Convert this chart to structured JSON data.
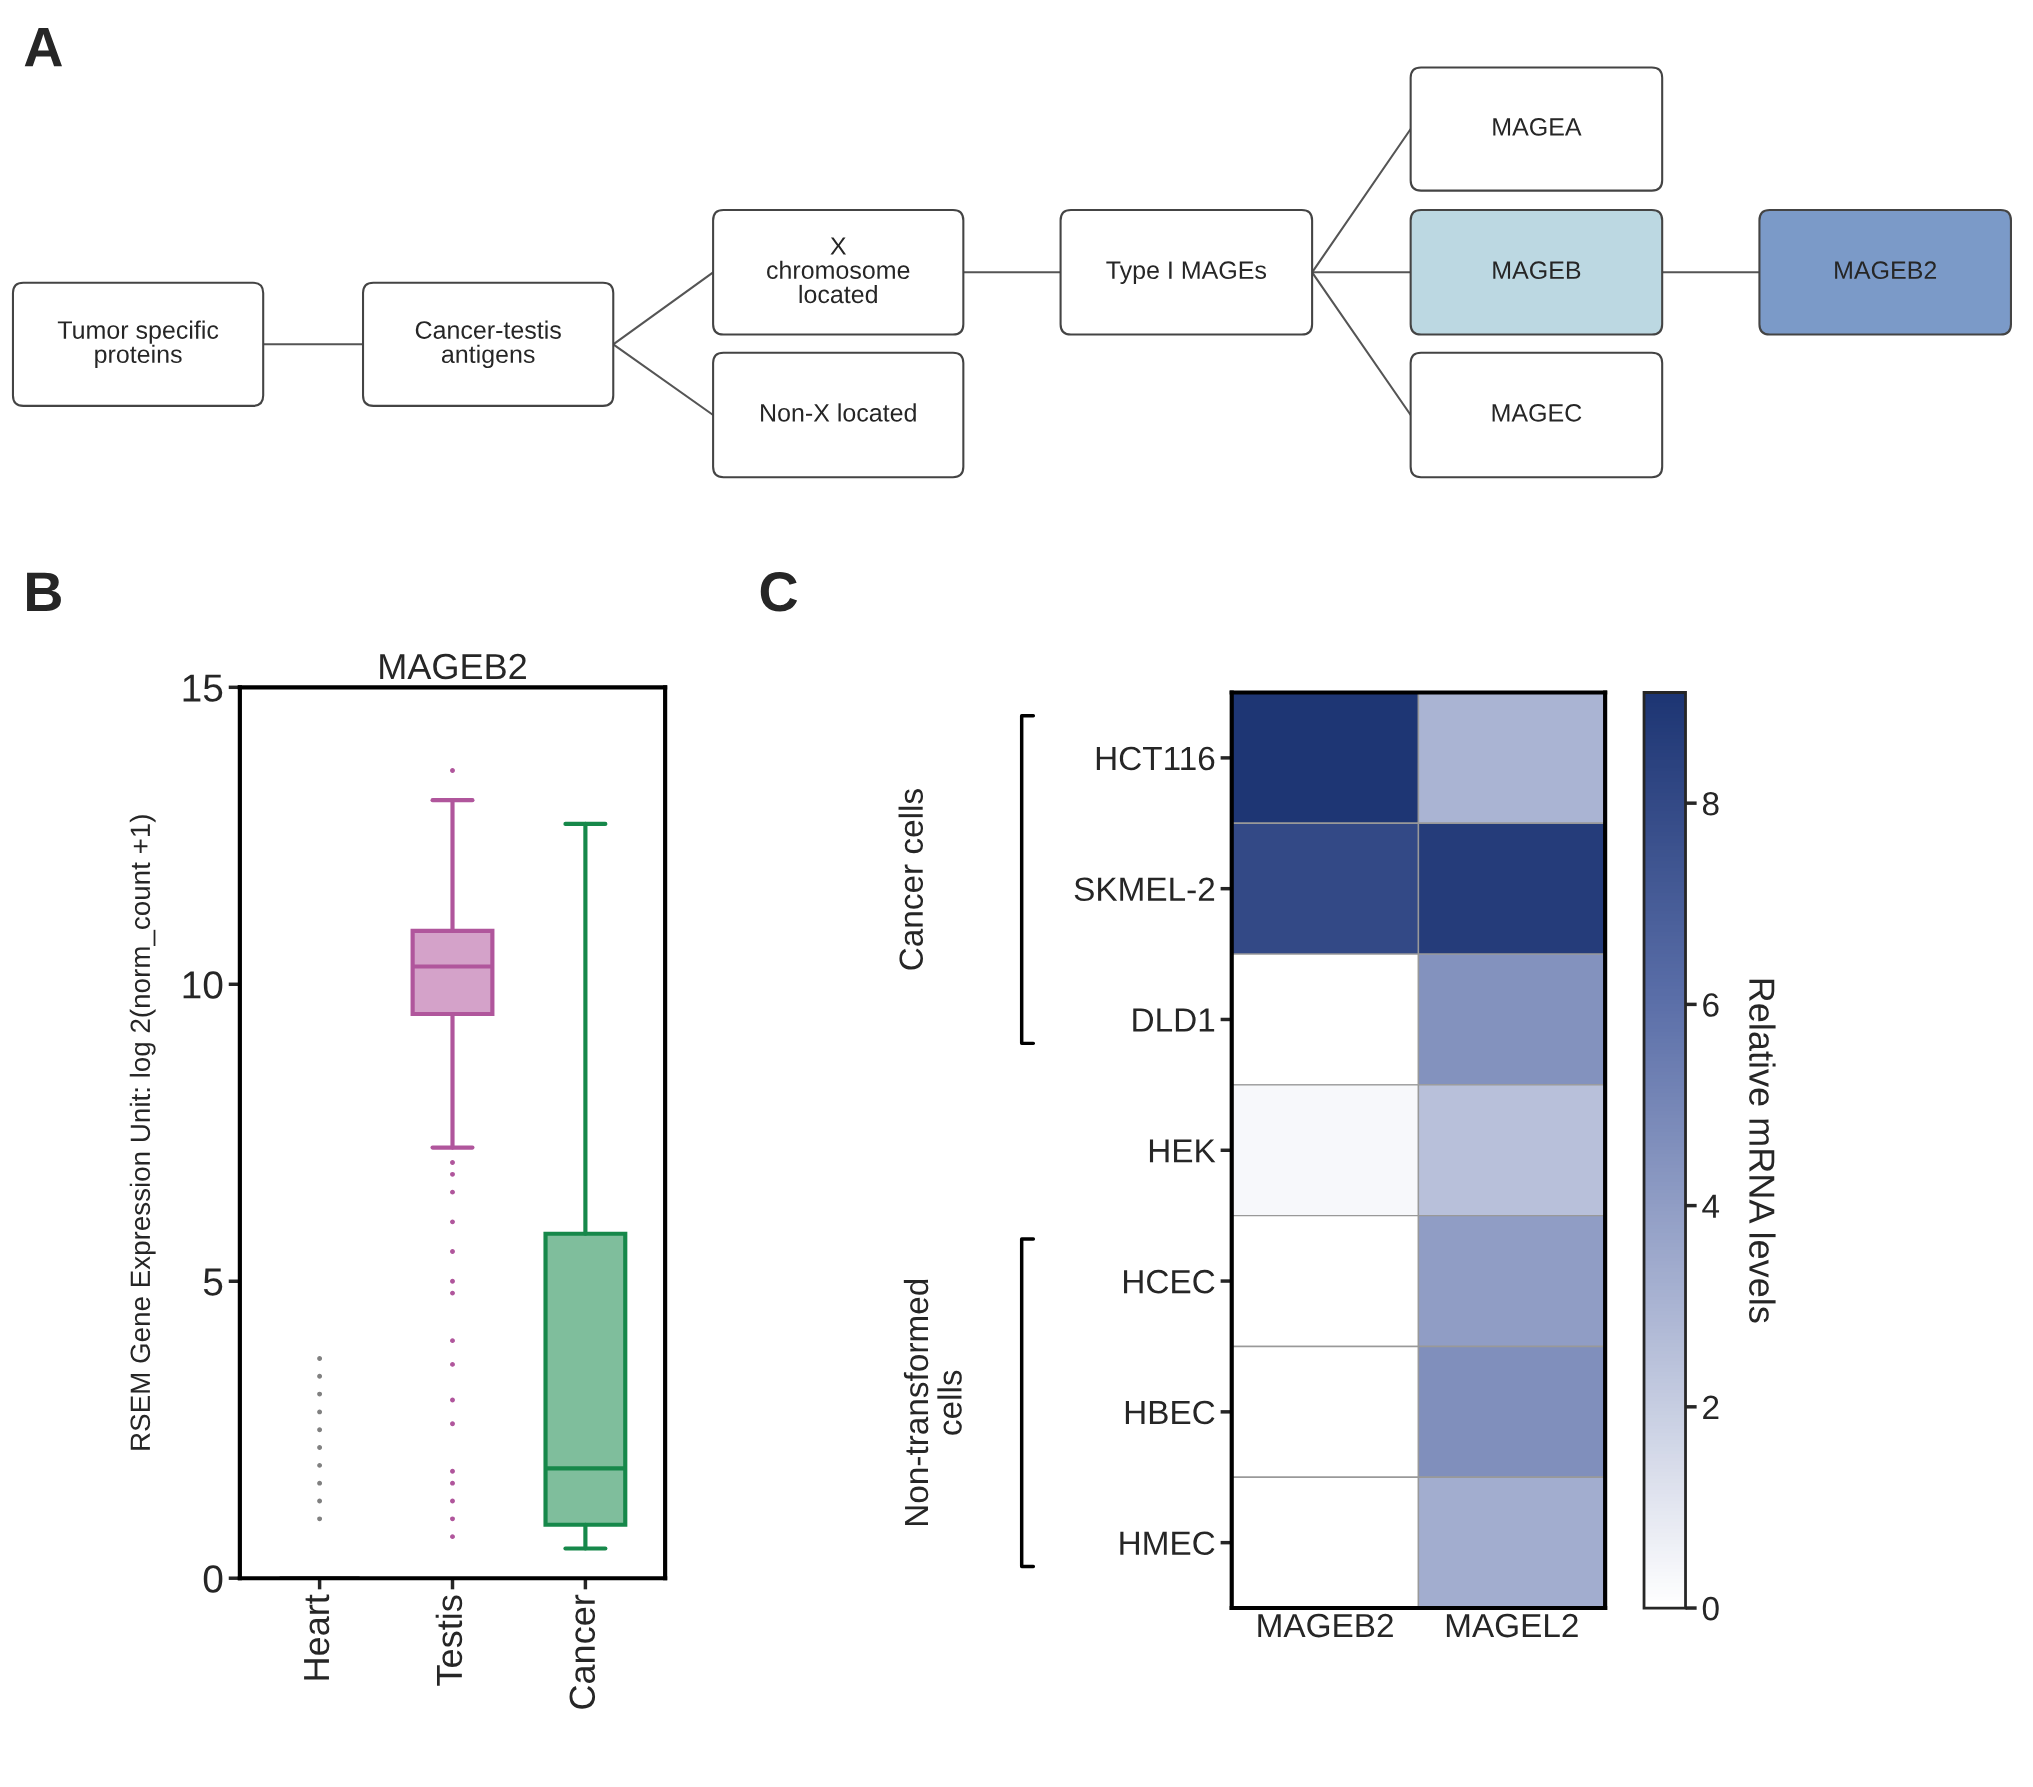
{
  "chart_data": [
    {
      "type": "other",
      "annotations": [
        "A",
        "Tumor specific\nproteins",
        "Cancer-testis\nantigens",
        "X\nchromosome\nlocated",
        "Non-X located",
        "Type I MAGEs",
        "MAGEA",
        "MAGEB",
        "MAGEC",
        "MAGEB2"
      ],
      "colors": [
        "#ffffff",
        "#ffffff",
        "#ffffff",
        "#ffffff",
        "#ffffff",
        "#ffffff",
        "#bcd8e2",
        "#ffffff",
        "#7b9ac8"
      ]
    },
    {
      "type": "box",
      "title": "MAGEB2",
      "ylabel": "RSEM Gene Expression Unit: log 2(norm_count +1)",
      "annotations": [
        "B"
      ],
      "categories": [
        "Heart",
        "Testis",
        "Cancer"
      ],
      "colors": [
        "#808080",
        "#b0569c",
        "#16884a"
      ],
      "ylim": [
        0,
        15
      ],
      "yticks": [
        0,
        5,
        10,
        15
      ],
      "boxes": [
        {
          "low": 0,
          "q1": 0,
          "median": 0,
          "q3": 0,
          "high": 0,
          "outliers": [
            1.0,
            1.3,
            1.6,
            1.9,
            2.2,
            2.5,
            2.8,
            3.1,
            3.4,
            3.7
          ]
        },
        {
          "low": 7.25,
          "q1": 9.5,
          "median": 10.3,
          "q3": 10.9,
          "high": 13.1,
          "outliers": [
            13.6,
            7.0,
            6.8,
            6.5,
            6.0,
            5.5,
            5.0,
            4.8,
            4.0,
            3.6,
            3.0,
            2.6,
            1.8,
            1.6,
            1.3,
            1.0,
            0.7
          ]
        },
        {
          "low": 0.5,
          "q1": 0.9,
          "median": 1.85,
          "q3": 5.8,
          "high": 12.7
        }
      ]
    },
    {
      "type": "heatmap",
      "clabel": "Relative mRNA levels",
      "annotations": [
        "C",
        "Cancer cells",
        "Non-transformed\ncells"
      ],
      "categories": [
        "MAGEB2",
        "MAGEL2"
      ],
      "y_categories": [
        "HCT116",
        "SKMEL-2",
        "DLD1",
        "HEK",
        "HCEC",
        "HBEC",
        "HMEC"
      ],
      "cells": [
        [
          9.0,
          3.0
        ],
        [
          8.0,
          8.7
        ],
        [
          0,
          4.5
        ],
        [
          0.3,
          2.5
        ],
        [
          0,
          4.0
        ],
        [
          0,
          4.6
        ],
        [
          0,
          3.3
        ]
      ],
      "clim": [
        0,
        9.1
      ],
      "cticks": [
        0,
        2,
        4,
        6,
        8
      ]
    }
  ]
}
